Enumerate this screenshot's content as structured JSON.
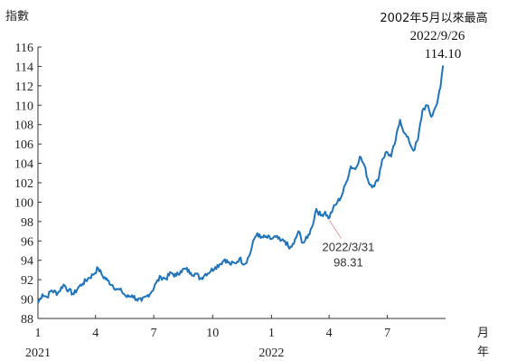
{
  "chart_data": {
    "type": "line",
    "ylabel": "指數",
    "ylim": [
      88,
      116
    ],
    "yticks": [
      88,
      90,
      92,
      94,
      96,
      98,
      100,
      102,
      104,
      106,
      108,
      110,
      112,
      114,
      116
    ],
    "xlim": [
      "2021-01-01",
      "2022-09-30"
    ],
    "xticks": [
      {
        "date": "2021-01-01",
        "label": "1"
      },
      {
        "date": "2021-04-01",
        "label": "4"
      },
      {
        "date": "2021-07-01",
        "label": "7"
      },
      {
        "date": "2021-10-01",
        "label": "10"
      },
      {
        "date": "2022-01-01",
        "label": "1"
      },
      {
        "date": "2022-04-01",
        "label": "4"
      },
      {
        "date": "2022-07-01",
        "label": "7"
      }
    ],
    "year_labels": [
      {
        "date": "2021-01-01",
        "label": "2021"
      },
      {
        "date": "2022-01-01",
        "label": "2022"
      }
    ],
    "x_unit_month": "月",
    "x_unit_year": "年",
    "color": "#1f74bb",
    "series": [
      {
        "points": [
          [
            "2021-01-01",
            89.6
          ],
          [
            "2021-01-08",
            90.5
          ],
          [
            "2021-01-15",
            90.2
          ],
          [
            "2021-01-22",
            90.9
          ],
          [
            "2021-02-01",
            90.6
          ],
          [
            "2021-02-10",
            91.5
          ],
          [
            "2021-02-18",
            90.9
          ],
          [
            "2021-02-26",
            90.5
          ],
          [
            "2021-03-05",
            91.2
          ],
          [
            "2021-03-12",
            91.6
          ],
          [
            "2021-03-20",
            92.1
          ],
          [
            "2021-03-28",
            92.5
          ],
          [
            "2021-04-05",
            93.2
          ],
          [
            "2021-04-12",
            92.4
          ],
          [
            "2021-04-20",
            91.9
          ],
          [
            "2021-04-28",
            91.4
          ],
          [
            "2021-05-05",
            91.0
          ],
          [
            "2021-05-12",
            90.8
          ],
          [
            "2021-05-20",
            90.2
          ],
          [
            "2021-05-28",
            90.4
          ],
          [
            "2021-06-04",
            90.0
          ],
          [
            "2021-06-12",
            89.8
          ],
          [
            "2021-06-20",
            90.3
          ],
          [
            "2021-06-28",
            90.8
          ],
          [
            "2021-07-05",
            91.7
          ],
          [
            "2021-07-12",
            92.3
          ],
          [
            "2021-07-20",
            92.1
          ],
          [
            "2021-07-28",
            92.7
          ],
          [
            "2021-08-05",
            92.4
          ],
          [
            "2021-08-12",
            92.9
          ],
          [
            "2021-08-20",
            93.1
          ],
          [
            "2021-08-28",
            92.7
          ],
          [
            "2021-09-05",
            92.6
          ],
          [
            "2021-09-12",
            92.1
          ],
          [
            "2021-09-20",
            92.6
          ],
          [
            "2021-09-28",
            92.9
          ],
          [
            "2021-10-05",
            93.3
          ],
          [
            "2021-10-12",
            93.6
          ],
          [
            "2021-10-20",
            94.1
          ],
          [
            "2021-10-28",
            93.6
          ],
          [
            "2021-11-05",
            93.7
          ],
          [
            "2021-11-12",
            94.2
          ],
          [
            "2021-11-20",
            93.6
          ],
          [
            "2021-11-28",
            94.6
          ],
          [
            "2021-12-05",
            96.2
          ],
          [
            "2021-12-10",
            96.8
          ],
          [
            "2021-12-15",
            96.3
          ],
          [
            "2021-12-22",
            96.4
          ],
          [
            "2022-01-01",
            96.2
          ],
          [
            "2022-01-08",
            96.4
          ],
          [
            "2022-01-15",
            96.0
          ],
          [
            "2022-01-22",
            96.0
          ],
          [
            "2022-01-29",
            95.2
          ],
          [
            "2022-02-05",
            95.7
          ],
          [
            "2022-02-12",
            97.0
          ],
          [
            "2022-02-19",
            95.8
          ],
          [
            "2022-02-26",
            96.3
          ],
          [
            "2022-03-05",
            97.4
          ],
          [
            "2022-03-12",
            99.3
          ],
          [
            "2022-03-19",
            98.6
          ],
          [
            "2022-03-26",
            99.0
          ],
          [
            "2022-03-31",
            98.31
          ],
          [
            "2022-04-07",
            99.3
          ],
          [
            "2022-04-14",
            100.0
          ],
          [
            "2022-04-21",
            100.7
          ],
          [
            "2022-04-28",
            102.1
          ],
          [
            "2022-05-05",
            103.7
          ],
          [
            "2022-05-12",
            103.4
          ],
          [
            "2022-05-19",
            104.7
          ],
          [
            "2022-05-26",
            103.8
          ],
          [
            "2022-06-02",
            102.0
          ],
          [
            "2022-06-09",
            101.7
          ],
          [
            "2022-06-16",
            102.2
          ],
          [
            "2022-06-23",
            104.4
          ],
          [
            "2022-06-30",
            105.2
          ],
          [
            "2022-07-07",
            104.7
          ],
          [
            "2022-07-14",
            106.4
          ],
          [
            "2022-07-21",
            108.5
          ],
          [
            "2022-07-28",
            107.1
          ],
          [
            "2022-08-04",
            106.3
          ],
          [
            "2022-08-11",
            105.3
          ],
          [
            "2022-08-18",
            106.5
          ],
          [
            "2022-08-25",
            109.5
          ],
          [
            "2022-09-01",
            110.0
          ],
          [
            "2022-09-08",
            108.8
          ],
          [
            "2022-09-15",
            109.9
          ],
          [
            "2022-09-22",
            111.8
          ],
          [
            "2022-09-26",
            114.1
          ]
        ]
      }
    ],
    "annotations": [
      {
        "date_label": "2022/3/31",
        "value_label": "98.31"
      },
      {
        "title": "2002年5月以來最高",
        "date_label": "2022/9/26",
        "value_label": "114.10"
      }
    ]
  }
}
